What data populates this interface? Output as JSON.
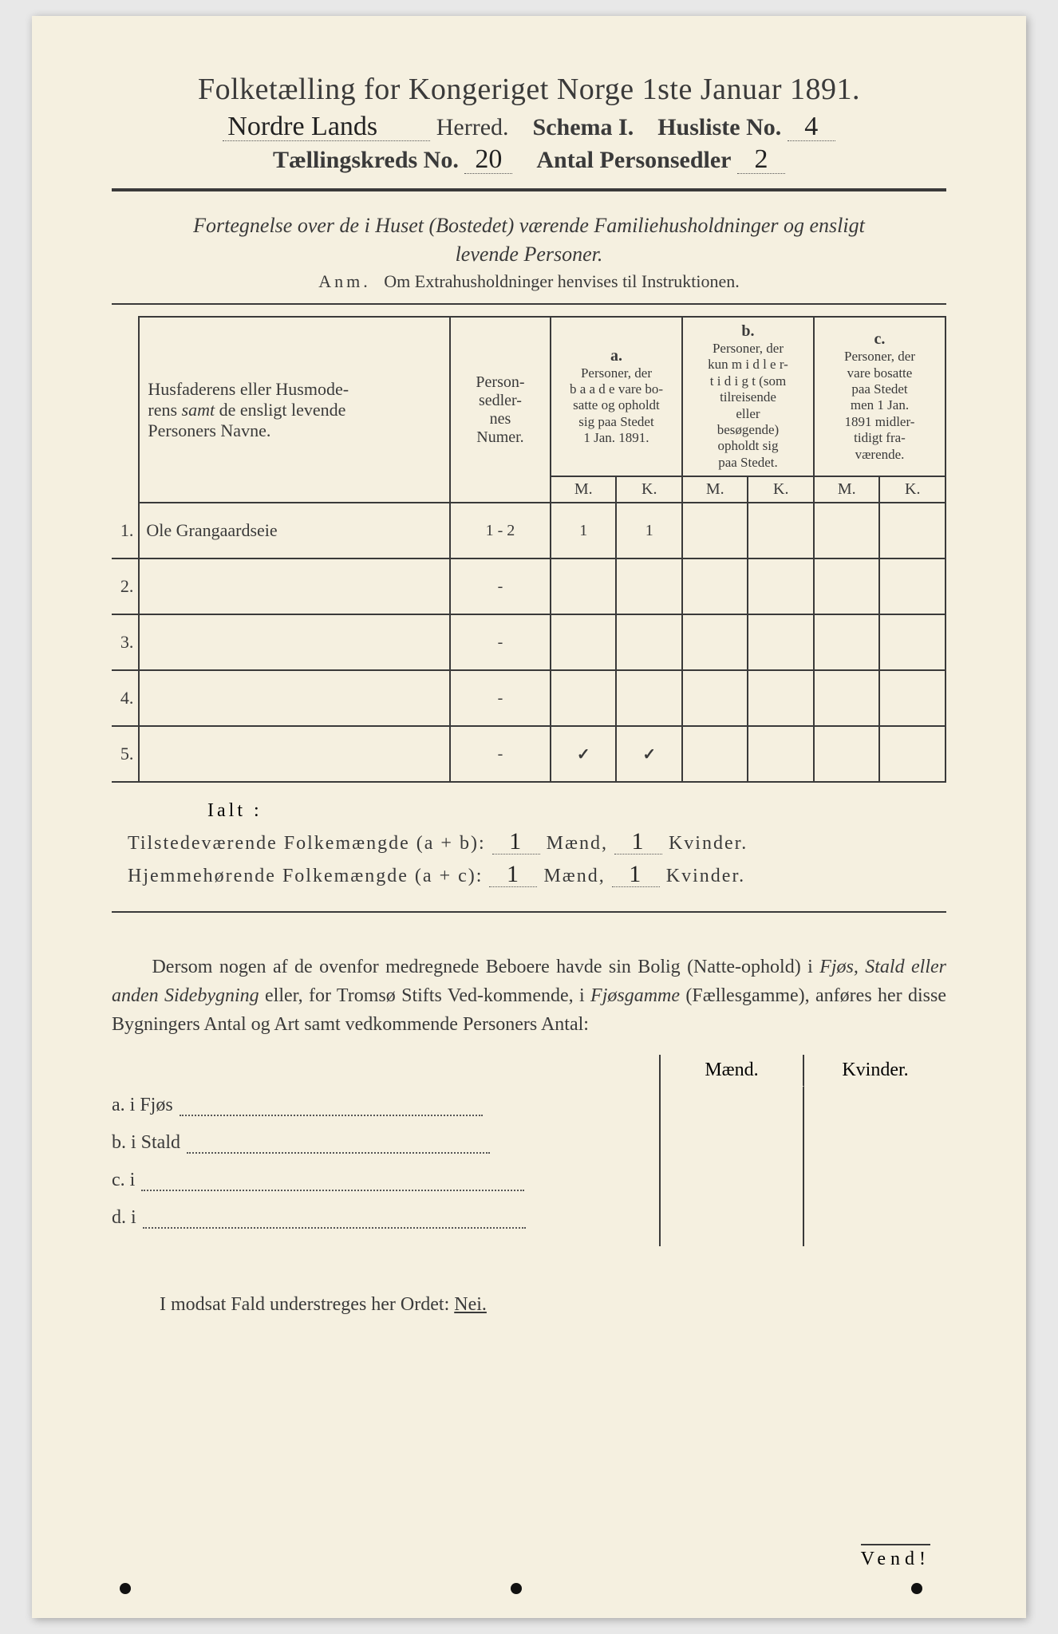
{
  "header": {
    "title": "Folketælling for Kongeriget Norge 1ste Januar 1891.",
    "herred_value": "Nordre Lands",
    "herred_label": "Herred.",
    "schema_label": "Schema I.",
    "husliste_label": "Husliste No.",
    "husliste_value": "4",
    "kreds_label": "Tællingskreds No.",
    "kreds_value": "20",
    "antal_label": "Antal Personsedler",
    "antal_value": "2"
  },
  "description": {
    "line1": "Fortegnelse over de i Huset (Bostedet) værende Familiehusholdninger og ensligt",
    "line2": "levende Personer.",
    "anm_label": "Anm.",
    "anm_text": "Om Extrahusholdninger henvises til Instruktionen."
  },
  "table": {
    "col_name": "Husfaderens eller Husmoderens samt de ensligt levende Personers Navne.",
    "col_num": "Person-sedler-nes Numer.",
    "col_a_label": "a.",
    "col_a_text": "Personer, der baade vare bosatte og opholdt sig paa Stedet 1 Jan. 1891.",
    "col_b_label": "b.",
    "col_b_text": "Personer, der kun midler-tidigt (som tilreisende eller besøgende) opholdt sig paa Stedet.",
    "col_c_label": "c.",
    "col_c_text": "Personer, der vare bosatte paa Stedet men 1 Jan. 1891 midler-tidigt fra-værende.",
    "m": "M.",
    "k": "K.",
    "rows": [
      {
        "n": "1.",
        "name": "Ole Grangaardseie",
        "num": "1 - 2",
        "am": "1",
        "ak": "1",
        "bm": "",
        "bk": "",
        "cm": "",
        "ck": ""
      },
      {
        "n": "2.",
        "name": "",
        "num": "-",
        "am": "",
        "ak": "",
        "bm": "",
        "bk": "",
        "cm": "",
        "ck": ""
      },
      {
        "n": "3.",
        "name": "",
        "num": "-",
        "am": "",
        "ak": "",
        "bm": "",
        "bk": "",
        "cm": "",
        "ck": ""
      },
      {
        "n": "4.",
        "name": "",
        "num": "-",
        "am": "",
        "ak": "",
        "bm": "",
        "bk": "",
        "cm": "",
        "ck": ""
      },
      {
        "n": "5.",
        "name": "",
        "num": "-",
        "am": "✓",
        "ak": "✓",
        "bm": "",
        "bk": "",
        "cm": "",
        "ck": "",
        "tick": true
      }
    ]
  },
  "totals": {
    "ialt": "Ialt :",
    "line1_label": "Tilstedeværende Folkemængde (a + b):",
    "line2_label": "Hjemmehørende Folkemængde (a + c):",
    "maend": "Mænd,",
    "kvinder": "Kvinder.",
    "l1_m": "1",
    "l1_k": "1",
    "l2_m": "1",
    "l2_k": "1"
  },
  "para": "Dersom nogen af de ovenfor medregnede Beboere havde sin Bolig (Natte-ophold) i Fjøs, Stald eller anden Sidebygning eller, for Tromsø Stifts Ved-kommende, i Fjøsgamme (Fællesgamme), anføres her disse Bygningers Antal og Art samt vedkommende Personers Antal:",
  "outbuildings": {
    "mk_m": "Mænd.",
    "mk_k": "Kvinder.",
    "rows": [
      {
        "label": "a.  i     Fjøs"
      },
      {
        "label": "b.  i     Stald"
      },
      {
        "label": "c.  i"
      },
      {
        "label": "d.  i"
      }
    ]
  },
  "nei": "I modsat Fald understreges her Ordet: ",
  "nei_word": "Nei.",
  "vend": "Vend!"
}
